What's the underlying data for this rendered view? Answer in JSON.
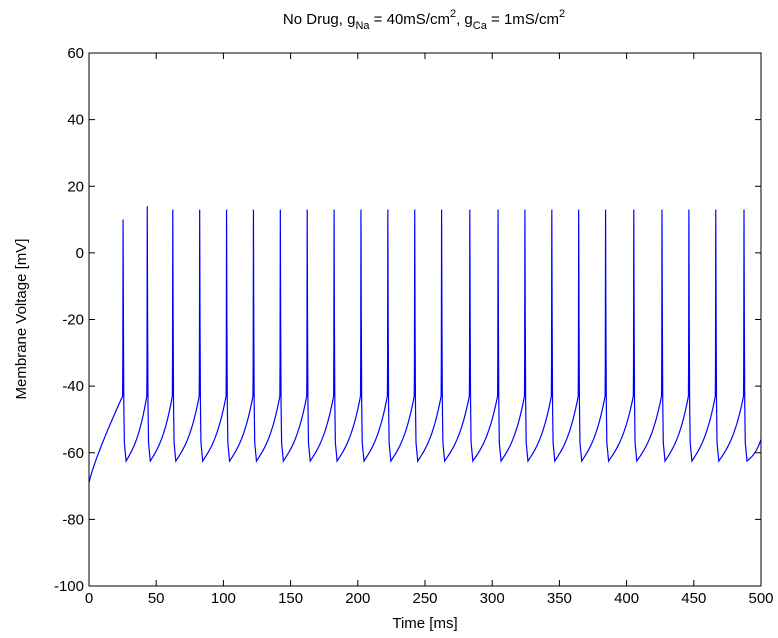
{
  "chart_data": {
    "type": "line",
    "title": {
      "prefix": "No Drug, g",
      "na_sub": "Na",
      "na_value": " = 40mS/cm",
      "na_sup": "2",
      "separator": ", g",
      "ca_sub": "Ca",
      "ca_value": " = 1mS/cm",
      "ca_sup": "2"
    },
    "xlabel": "Time [ms]",
    "ylabel": "Membrane Voltage [mV]",
    "xlim": [
      0,
      500
    ],
    "ylim": [
      -100,
      60
    ],
    "xticks": [
      0,
      50,
      100,
      150,
      200,
      250,
      300,
      350,
      400,
      450,
      500
    ],
    "yticks": [
      -100,
      -80,
      -60,
      -40,
      -20,
      0,
      20,
      40,
      60
    ],
    "grid": false,
    "legend": "none",
    "series": [
      {
        "color": "#0000ff",
        "start_voltage": -69,
        "end_voltage": -56,
        "end_time": 500,
        "threshold": -43,
        "trough": -62.5,
        "spike_times": [
          25,
          43,
          62,
          82,
          102,
          122,
          142,
          162,
          182,
          202,
          222,
          242,
          262,
          283,
          304,
          324,
          344,
          364,
          384,
          405,
          426,
          446,
          466,
          487
        ],
        "spike_peaks": [
          10,
          14,
          13,
          13,
          13,
          13,
          13,
          13,
          13,
          13,
          13,
          13,
          13,
          13,
          13,
          13,
          13,
          13,
          13,
          13,
          13,
          13,
          13,
          13
        ]
      }
    ]
  }
}
